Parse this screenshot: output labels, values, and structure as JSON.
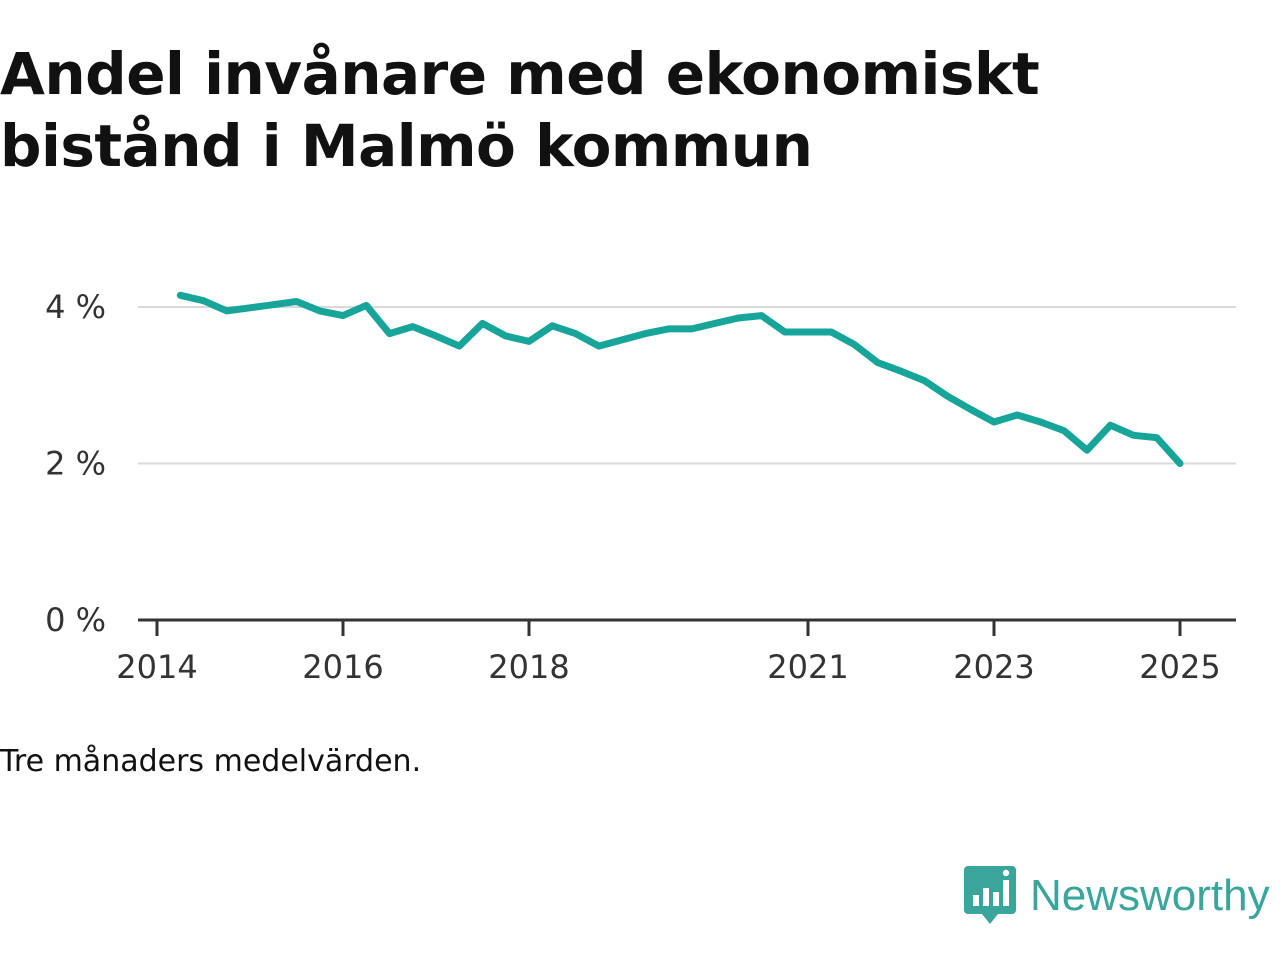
{
  "title_lines": [
    "Andel invånare med ekonomiskt",
    "bistånd i Malmö kommun"
  ],
  "note": "Tre månaders medelvärden.",
  "brand": {
    "name": "Newsworthy",
    "icon": "newsworthy-logo-icon",
    "color": "#3aa59b"
  },
  "chart_data": {
    "type": "line",
    "title": "Andel invånare med ekonomiskt bistånd i Malmö kommun",
    "xlabel": "",
    "ylabel": "",
    "ylim": [
      0,
      4.2
    ],
    "y_ticks": [
      {
        "value": 0,
        "label": "0 %"
      },
      {
        "value": 2,
        "label": "2 %"
      },
      {
        "value": 4,
        "label": "4 %"
      }
    ],
    "x_ticks": [
      {
        "value": "2014-01",
        "label": "2014"
      },
      {
        "value": "2016-01",
        "label": "2016"
      },
      {
        "value": "2018-01",
        "label": "2018"
      },
      {
        "value": "2021-01",
        "label": "2021"
      },
      {
        "value": "2023-01",
        "label": "2023"
      },
      {
        "value": "2025-01",
        "label": "2025"
      }
    ],
    "x_range": [
      "2014-01",
      "2025-08"
    ],
    "grid": true,
    "legend": "none",
    "colors": {
      "line": "#17a59a",
      "grid": "#d9d9d9",
      "axis": "#333333"
    },
    "series": [
      {
        "x": [
          "2014-04",
          "2014-07",
          "2014-10",
          "2015-01",
          "2015-04",
          "2015-07",
          "2015-10",
          "2016-01",
          "2016-04",
          "2016-07",
          "2016-10",
          "2017-01",
          "2017-04",
          "2017-07",
          "2017-10",
          "2018-01",
          "2018-04",
          "2018-07",
          "2018-10",
          "2019-01",
          "2019-04",
          "2019-07",
          "2019-10",
          "2020-01",
          "2020-04",
          "2020-07",
          "2020-10",
          "2021-01",
          "2021-04",
          "2021-07",
          "2021-10",
          "2022-01",
          "2022-04",
          "2022-07",
          "2022-10",
          "2023-01",
          "2023-04",
          "2023-07",
          "2023-10",
          "2024-01",
          "2024-04",
          "2024-07",
          "2024-10",
          "2025-01"
        ],
        "values": [
          4.15,
          4.08,
          3.95,
          3.99,
          4.03,
          4.07,
          3.95,
          3.89,
          4.02,
          3.66,
          3.75,
          3.63,
          3.5,
          3.79,
          3.63,
          3.56,
          3.76,
          3.66,
          3.5,
          3.58,
          3.66,
          3.72,
          3.72,
          3.79,
          3.86,
          3.89,
          3.68,
          3.68,
          3.68,
          3.52,
          3.29,
          3.18,
          3.06,
          2.86,
          2.69,
          2.53,
          2.62,
          2.53,
          2.42,
          2.17,
          2.49,
          2.36,
          2.33,
          2.0
        ]
      }
    ]
  }
}
